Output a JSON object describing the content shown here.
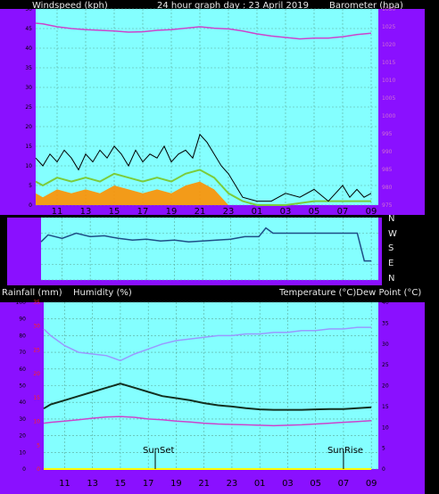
{
  "header": {
    "left": "Windspeed (kph)",
    "center": "24 hour graph day : 23 April 2019",
    "right": "Barometer (hpa)"
  },
  "mid_header": {
    "rainfall": "Rainfall (mm)",
    "humidity": "Humidity (%)",
    "temperature": "Temperature (°C)Dew Point (°C)"
  },
  "compass": [
    "N",
    "W",
    "S",
    "E",
    "N"
  ],
  "markers": {
    "sunset": "SunSet",
    "sunrise": "SunRise"
  },
  "colors": {
    "frame": "#8a10ff",
    "plot_bg": "#84ffff",
    "wind_gust": "#000000",
    "wind_avg": "#7ccc3a",
    "wind_low": "#ff9000",
    "pressure": "#cc44cc",
    "wind_dir": "#1e4e86",
    "humidity": "#9999ff",
    "temperature": "#123020",
    "dewpoint": "#cc44cc",
    "rain": "#ffff00",
    "axis_red": "#ff2222"
  },
  "chart_data": [
    {
      "type": "line",
      "name": "wind-pressure",
      "x_ticks": [
        "11",
        "13",
        "15",
        "17",
        "19",
        "21",
        "23",
        "01",
        "03",
        "05",
        "07",
        "09"
      ],
      "y_left_ticks": [
        "0",
        "5",
        "10",
        "15",
        "20",
        "25",
        "30",
        "35",
        "40",
        "45",
        "50"
      ],
      "y_right_ticks": [
        "975",
        "980",
        "985",
        "990",
        "995",
        "1000",
        "1005",
        "1010",
        "1015",
        "1020",
        "1025",
        "1030"
      ],
      "ylim_left": [
        0,
        50
      ],
      "ylim_right": [
        975,
        1030
      ],
      "series": [
        {
          "name": "gust",
          "hours": [
            9.5,
            10,
            10.5,
            11,
            11.5,
            12,
            12.5,
            13,
            13.5,
            14,
            14.5,
            15,
            15.5,
            16,
            16.5,
            17,
            17.5,
            18,
            18.5,
            19,
            19.5,
            20,
            20.5,
            21,
            21.5,
            22,
            22.5,
            23,
            23.5,
            24,
            25,
            26,
            27,
            28,
            29,
            30,
            30.5,
            31,
            31.5,
            32,
            32.5,
            33
          ],
          "values": [
            12,
            10,
            13,
            11,
            14,
            12,
            9,
            13,
            11,
            14,
            12,
            15,
            13,
            10,
            14,
            11,
            13,
            12,
            15,
            11,
            13,
            14,
            12,
            18,
            16,
            13,
            10,
            8,
            5,
            2,
            1,
            1,
            3,
            2,
            4,
            1,
            3,
            5,
            2,
            4,
            2,
            3
          ]
        },
        {
          "name": "average",
          "hours": [
            9.5,
            10,
            11,
            12,
            13,
            14,
            15,
            16,
            17,
            18,
            19,
            20,
            21,
            22,
            23,
            24,
            25,
            27,
            29,
            31,
            33
          ],
          "values": [
            6,
            5,
            7,
            6,
            7,
            6,
            8,
            7,
            6,
            7,
            6,
            8,
            9,
            7,
            3,
            1,
            0,
            0,
            1,
            1,
            1
          ]
        },
        {
          "name": "pressure",
          "hours": [
            9.5,
            10,
            11,
            12,
            13,
            14,
            15,
            16,
            17,
            18,
            19,
            20,
            21,
            22,
            23,
            24,
            25,
            26,
            27,
            28,
            29,
            30,
            31,
            32,
            33
          ],
          "values": [
            1026,
            1025.8,
            1025,
            1024.5,
            1024.2,
            1024,
            1023.8,
            1023.5,
            1023.6,
            1024,
            1024.2,
            1024.6,
            1025,
            1024.6,
            1024.4,
            1023.8,
            1023,
            1022.4,
            1022,
            1021.6,
            1021.8,
            1021.8,
            1022.2,
            1022.8,
            1023.2
          ]
        }
      ]
    },
    {
      "type": "line",
      "name": "wind-direction",
      "series": [
        {
          "name": "direction",
          "hours": [
            9.5,
            10,
            11,
            12,
            13,
            14,
            15,
            16,
            17,
            18,
            19,
            20,
            21,
            22,
            23,
            24,
            25,
            25.5,
            26,
            27,
            28,
            29,
            30,
            31,
            32,
            32.5,
            33
          ],
          "values": [
            220,
            260,
            240,
            270,
            250,
            255,
            240,
            230,
            235,
            225,
            230,
            220,
            225,
            230,
            235,
            250,
            250,
            300,
            270,
            270,
            270,
            270,
            270,
            270,
            270,
            110,
            110
          ]
        }
      ]
    },
    {
      "type": "line",
      "name": "temp-humidity",
      "y_left_ticks": [
        "0",
        "10",
        "20",
        "30",
        "40",
        "50",
        "60",
        "70",
        "80",
        "90",
        "100"
      ],
      "y_red_ticks": [
        "0",
        "5",
        "10",
        "15",
        "20",
        "25",
        "30",
        "35"
      ],
      "y_right_ticks": [
        "0",
        "5",
        "10",
        "15",
        "20",
        "25",
        "30",
        "35",
        "40"
      ],
      "ylim_humidity": [
        0,
        100
      ],
      "ylim_rain": [
        0,
        35
      ],
      "ylim_temp": [
        0,
        40
      ],
      "series": [
        {
          "name": "humidity",
          "hours": [
            9.5,
            10,
            11,
            12,
            13,
            14,
            15,
            16,
            17,
            18,
            19,
            20,
            21,
            22,
            23,
            24,
            25,
            26,
            27,
            28,
            29,
            30,
            31,
            32,
            33
          ],
          "values": [
            84,
            80,
            74,
            70,
            69,
            68,
            65,
            69,
            72,
            75,
            77,
            78,
            79,
            80,
            80,
            81,
            81,
            82,
            82,
            83,
            83,
            84,
            84,
            85,
            85
          ]
        },
        {
          "name": "temperature",
          "hours": [
            9.5,
            10,
            11,
            12,
            13,
            14,
            15,
            16,
            17,
            18,
            19,
            20,
            21,
            22,
            23,
            24,
            25,
            26,
            27,
            28,
            29,
            30,
            31,
            32,
            33
          ],
          "values": [
            14.5,
            15.5,
            16.5,
            17.5,
            18.5,
            19.5,
            20.5,
            19.5,
            18.5,
            17.5,
            17,
            16.5,
            15.8,
            15.3,
            15,
            14.6,
            14.3,
            14.2,
            14.2,
            14.2,
            14.3,
            14.4,
            14.4,
            14.6,
            14.8
          ]
        },
        {
          "name": "dewpoint",
          "hours": [
            9.5,
            10,
            11,
            12,
            13,
            14,
            15,
            16,
            17,
            18,
            19,
            20,
            21,
            22,
            23,
            24,
            25,
            26,
            27,
            28,
            29,
            30,
            31,
            32,
            33
          ],
          "values": [
            11,
            11.2,
            11.5,
            11.8,
            12.2,
            12.5,
            12.6,
            12.4,
            12,
            11.8,
            11.5,
            11.3,
            11,
            10.8,
            10.7,
            10.6,
            10.5,
            10.4,
            10.5,
            10.6,
            10.8,
            11,
            11.2,
            11.4,
            11.6
          ]
        },
        {
          "name": "rainfall",
          "hours": [
            9.5,
            33
          ],
          "values": [
            0,
            0
          ]
        }
      ],
      "sunset_hour": 17.5,
      "sunrise_hour": 31
    }
  ]
}
